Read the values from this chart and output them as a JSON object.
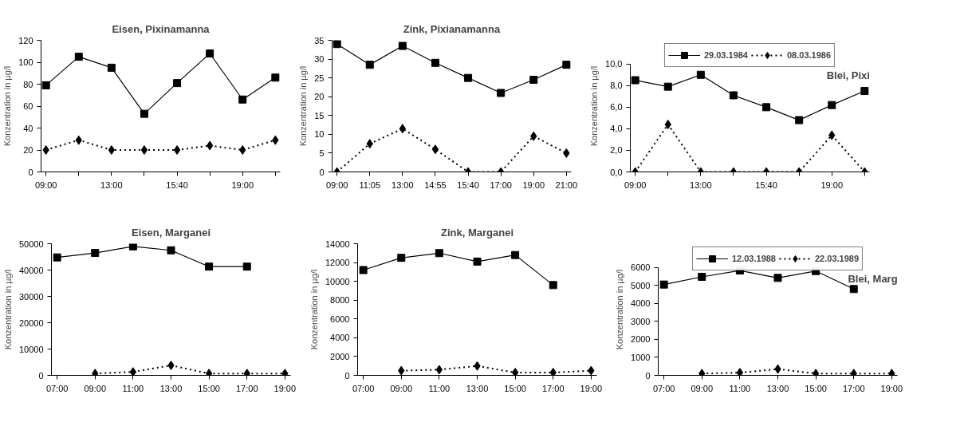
{
  "chart_data": [
    {
      "type": "line",
      "title": "Eisen, Pixinamanna",
      "ylabel": "Konzentration in µg/l",
      "categories": [
        "09:00",
        null,
        "13:00",
        null,
        "15:40",
        null,
        "19:00",
        null
      ],
      "ylim": [
        0,
        120
      ],
      "yticks": [
        0,
        20,
        40,
        60,
        80,
        100,
        120
      ],
      "grid": false,
      "legend": false,
      "series": [
        {
          "color": "#000000",
          "marker": "square",
          "line_style": "solid",
          "values": [
            79,
            105,
            95,
            53,
            81,
            108,
            66,
            86
          ]
        },
        {
          "color": "#000000",
          "marker": "diamond",
          "line_style": "dotted",
          "values": [
            20,
            29,
            20,
            20,
            20,
            24,
            20,
            29
          ]
        }
      ]
    },
    {
      "type": "line",
      "title": "Zink, Pixianamanna",
      "ylabel": "Konzentration in µg/l",
      "categories": [
        "09:00",
        "11:05",
        "13:00",
        "14:55",
        "15:40",
        "17:00",
        "19:00",
        "21:00"
      ],
      "ylim": [
        0,
        35
      ],
      "yticks": [
        0,
        5,
        10,
        15,
        20,
        25,
        30,
        35
      ],
      "grid": false,
      "legend": false,
      "series": [
        {
          "color": "#000000",
          "marker": "square",
          "line_style": "solid",
          "values": [
            34,
            28.5,
            33.5,
            29,
            25,
            21,
            24.5,
            28.5
          ]
        },
        {
          "color": "#000000",
          "marker": "diamond",
          "line_style": "dotted",
          "values": [
            0,
            7.5,
            11.5,
            6,
            0,
            0,
            9.5,
            5
          ]
        }
      ]
    },
    {
      "type": "line",
      "title": "Blei, Pixi",
      "ylabel": "Konzentration in µg/l",
      "categories": [
        "09:00",
        null,
        "13:00",
        null,
        "15:40",
        null,
        "19:00",
        null
      ],
      "ylim": [
        0,
        10
      ],
      "yticks": [
        {
          "value": 0,
          "label": "0,0"
        },
        {
          "value": 2,
          "label": "2,0"
        },
        {
          "value": 4,
          "label": "4,0"
        },
        {
          "value": 6,
          "label": "6,0"
        },
        {
          "value": 8,
          "label": "8,0"
        },
        {
          "value": 10,
          "label": "10,0"
        }
      ],
      "grid": false,
      "legend": "top",
      "series": [
        {
          "name": "29.03.1984",
          "color": "#000000",
          "marker": "square",
          "line_style": "solid",
          "values": [
            8.5,
            7.9,
            9.0,
            7.1,
            6.0,
            4.8,
            6.2,
            7.5
          ]
        },
        {
          "name": "08.03.1986",
          "color": "#000000",
          "marker": "diamond",
          "line_style": "dotted",
          "values": [
            0,
            4.4,
            0,
            0,
            0,
            0,
            3.4,
            0
          ]
        }
      ]
    },
    {
      "type": "line",
      "title": "Eisen, Marganei",
      "ylabel": "Konzentration in µg/l",
      "categories": [
        "07:00",
        "09:00",
        "11:00",
        "13:00",
        "15:00",
        "17:00",
        "19:00"
      ],
      "ylim": [
        0,
        50000
      ],
      "yticks": [
        0,
        10000,
        20000,
        30000,
        40000,
        50000
      ],
      "grid": false,
      "legend": false,
      "series": [
        {
          "color": "#000000",
          "marker": "square",
          "line_style": "solid",
          "values": [
            44800,
            46500,
            49000,
            47500,
            41300,
            41300,
            null
          ]
        },
        {
          "color": "#000000",
          "marker": "diamond",
          "line_style": "dotted",
          "values": [
            null,
            700,
            1300,
            3800,
            700,
            700,
            700
          ]
        }
      ]
    },
    {
      "type": "line",
      "title": "Zink, Marganei",
      "ylabel": "Konzentration in µg/l",
      "categories": [
        "07:00",
        "09:00",
        "11:00",
        "13:00",
        "15:00",
        "17:00",
        "19:00"
      ],
      "ylim": [
        0,
        14000
      ],
      "yticks": [
        0,
        2000,
        4000,
        6000,
        8000,
        10000,
        12000,
        14000
      ],
      "grid": false,
      "legend": false,
      "series": [
        {
          "color": "#000000",
          "marker": "square",
          "line_style": "solid",
          "values": [
            11200,
            12500,
            13000,
            12100,
            12800,
            9600,
            null
          ]
        },
        {
          "color": "#000000",
          "marker": "diamond",
          "line_style": "dotted",
          "values": [
            null,
            500,
            600,
            1000,
            300,
            300,
            500
          ]
        }
      ]
    },
    {
      "type": "line",
      "title": "Blei, Marg",
      "ylabel": "Konzentration in µg/l",
      "categories": [
        "07:00",
        "09:00",
        "11:00",
        "13:00",
        "15:00",
        "17:00",
        "19:00"
      ],
      "ylim": [
        0,
        6000
      ],
      "yticks": [
        0,
        1000,
        2000,
        3000,
        4000,
        5000,
        6000
      ],
      "grid": false,
      "legend": "top",
      "series": [
        {
          "name": "12.03.1988",
          "color": "#000000",
          "marker": "square",
          "line_style": "solid",
          "values": [
            5050,
            5480,
            5830,
            5420,
            5800,
            4800,
            null
          ]
        },
        {
          "name": "22.03.1989",
          "color": "#000000",
          "marker": "diamond",
          "line_style": "dotted",
          "values": [
            null,
            100,
            150,
            350,
            100,
            100,
            100
          ]
        }
      ]
    }
  ]
}
